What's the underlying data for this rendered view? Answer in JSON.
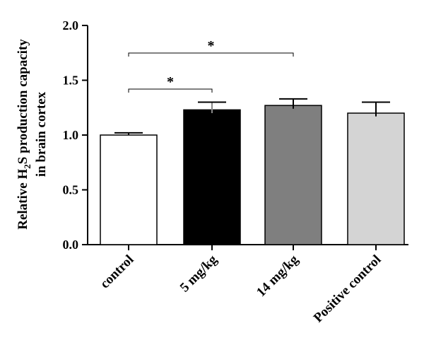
{
  "chart_data": {
    "type": "bar",
    "ylabel_lines": [
      "Relative H",
      "2",
      "S production capacity",
      "in brain cortex"
    ],
    "categories": [
      "control",
      "5 mg/kg",
      "14 mg/kg",
      "Positive control"
    ],
    "values": [
      1.0,
      1.23,
      1.27,
      1.2
    ],
    "errors": [
      0.02,
      0.07,
      0.06,
      0.1
    ],
    "bar_colors": [
      "#ffffff",
      "#000000",
      "#7f7f7f",
      "#d4d4d4"
    ],
    "ylim": [
      0,
      2.0
    ],
    "yticks": [
      "0.0",
      "0.5",
      "1.0",
      "1.5",
      "2.0"
    ],
    "ytick_values": [
      0,
      0.5,
      1.0,
      1.5,
      2.0
    ],
    "grid": false,
    "significance": [
      {
        "from": 0,
        "to": 1,
        "label": "*"
      },
      {
        "from": 0,
        "to": 2,
        "label": "*"
      }
    ]
  }
}
